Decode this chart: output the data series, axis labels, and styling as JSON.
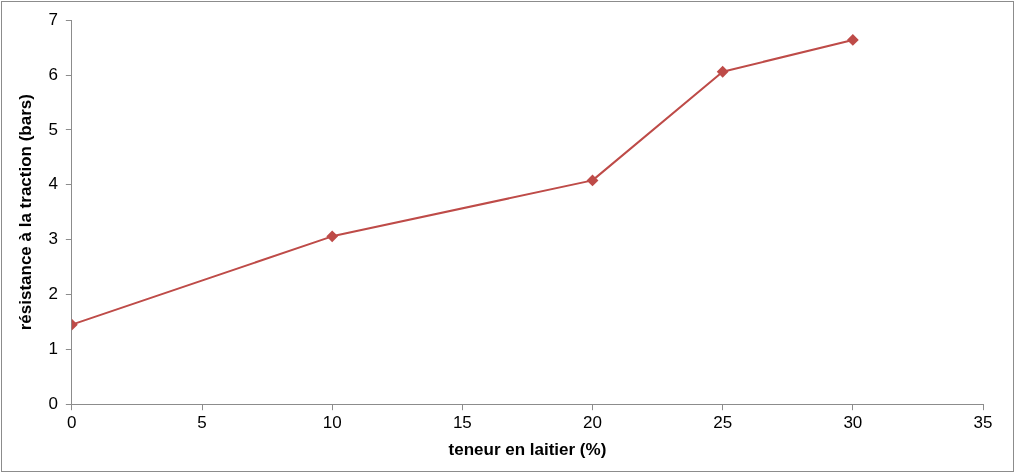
{
  "chart_data": {
    "type": "line",
    "xlabel": "teneur en laitier (%)",
    "ylabel": "résistance à la traction (bars)",
    "x": [
      0,
      10,
      20,
      25,
      30
    ],
    "series": [
      {
        "color": "#be4b48",
        "values": [
          1.45,
          3.06,
          4.08,
          6.06,
          6.64
        ]
      }
    ],
    "xlim": [
      0,
      35
    ],
    "xticks": [
      0,
      5,
      10,
      15,
      20,
      25,
      30,
      35
    ],
    "ylim": [
      0,
      7
    ],
    "yticks": [
      0,
      1,
      2,
      3,
      4,
      5,
      6,
      7
    ],
    "grid": false,
    "legend": false,
    "marker": "diamond",
    "line_style": "solid"
  }
}
